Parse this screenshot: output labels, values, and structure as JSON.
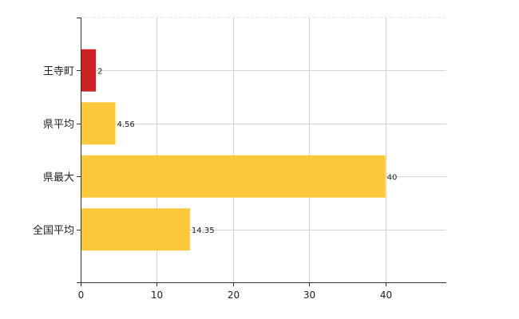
{
  "chart_data": {
    "type": "bar",
    "orientation": "horizontal",
    "categories": [
      "王寺町",
      "県平均",
      "県最大",
      "全国平均"
    ],
    "values": [
      2,
      4.56,
      40,
      14.35
    ],
    "value_labels": [
      "2",
      "4.56",
      "40",
      "14.35"
    ],
    "bar_colors": [
      "#cc2222",
      "#fbc83c",
      "#fbc83c",
      "#fbc83c"
    ],
    "xlim": [
      0,
      48
    ],
    "xticks": [
      0,
      10,
      20,
      30,
      40
    ],
    "xtick_labels": [
      "0",
      "10",
      "20",
      "30",
      "40"
    ],
    "grid": true,
    "legend": "none"
  }
}
